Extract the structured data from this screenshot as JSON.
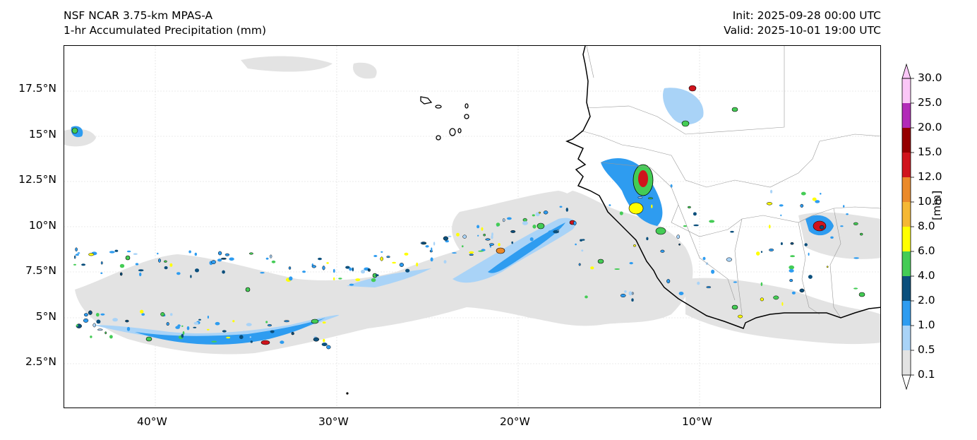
{
  "header": {
    "model": "NSF NCAR 3.75-km MPAS-A",
    "field": "1-hr Accumulated Precipitation (mm)",
    "init": "Init: 2025-09-28 00:00 UTC",
    "valid": "Valid: 2025-10-01 19:00 UTC"
  },
  "map": {
    "region": "Tropical East Atlantic and West Africa",
    "lon_range": [
      -45,
      0
    ],
    "lat_range": [
      0,
      20
    ],
    "y_ticks": [
      "17.5°N",
      "15°N",
      "12.5°N",
      "10°N",
      "7.5°N",
      "5°N",
      "2.5°N"
    ],
    "x_ticks": [
      "40°W",
      "30°W",
      "20°W",
      "10°W"
    ],
    "gridlines": true,
    "coastline_color": "#000000",
    "border_color": "#999999",
    "trace_color": "#e3e3e3"
  },
  "colorbar": {
    "title": "[mm]",
    "labels": [
      "30.0",
      "25.0",
      "20.0",
      "15.0",
      "12.0",
      "10.0",
      "8.0",
      "6.0",
      "4.0",
      "2.0",
      "1.0",
      "0.5",
      "0.1"
    ],
    "colors_bottom_to_top": [
      "#e3e3e3",
      "#a9d3f7",
      "#2e9cf0",
      "#0b4f7c",
      "#44cc55",
      "#ffff00",
      "#f5b834",
      "#eb8a2a",
      "#d0141c",
      "#950000",
      "#b22bb8",
      "#fbc7f7"
    ],
    "extend": "both"
  }
}
